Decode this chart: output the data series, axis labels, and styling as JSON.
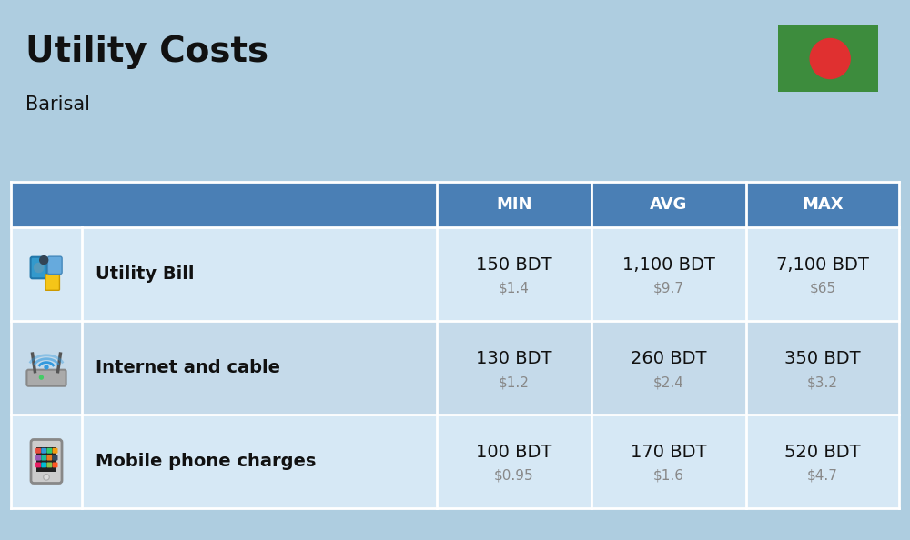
{
  "title": "Utility Costs",
  "subtitle": "Barisal",
  "background_color": "#aecde0",
  "header_bg_color": "#4a7fb5",
  "header_text_color": "#ffffff",
  "row_bg_colors": [
    "#d6e8f5",
    "#c5daea"
  ],
  "table_border_color": "#ffffff",
  "columns": [
    "",
    "",
    "MIN",
    "AVG",
    "MAX"
  ],
  "rows": [
    {
      "label": "Utility Bill",
      "min_bdt": "150 BDT",
      "min_usd": "$1.4",
      "avg_bdt": "1,100 BDT",
      "avg_usd": "$9.7",
      "max_bdt": "7,100 BDT",
      "max_usd": "$65"
    },
    {
      "label": "Internet and cable",
      "min_bdt": "130 BDT",
      "min_usd": "$1.2",
      "avg_bdt": "260 BDT",
      "avg_usd": "$2.4",
      "max_bdt": "350 BDT",
      "max_usd": "$3.2"
    },
    {
      "label": "Mobile phone charges",
      "min_bdt": "100 BDT",
      "min_usd": "$0.95",
      "avg_bdt": "170 BDT",
      "avg_usd": "$1.6",
      "max_bdt": "520 BDT",
      "max_usd": "$4.7"
    }
  ],
  "flag_green": "#3d8c3d",
  "flag_red": "#e03030",
  "bdt_fontsize": 14,
  "usd_fontsize": 11,
  "label_fontsize": 14,
  "header_fontsize": 13,
  "title_fontsize": 28,
  "subtitle_fontsize": 15
}
